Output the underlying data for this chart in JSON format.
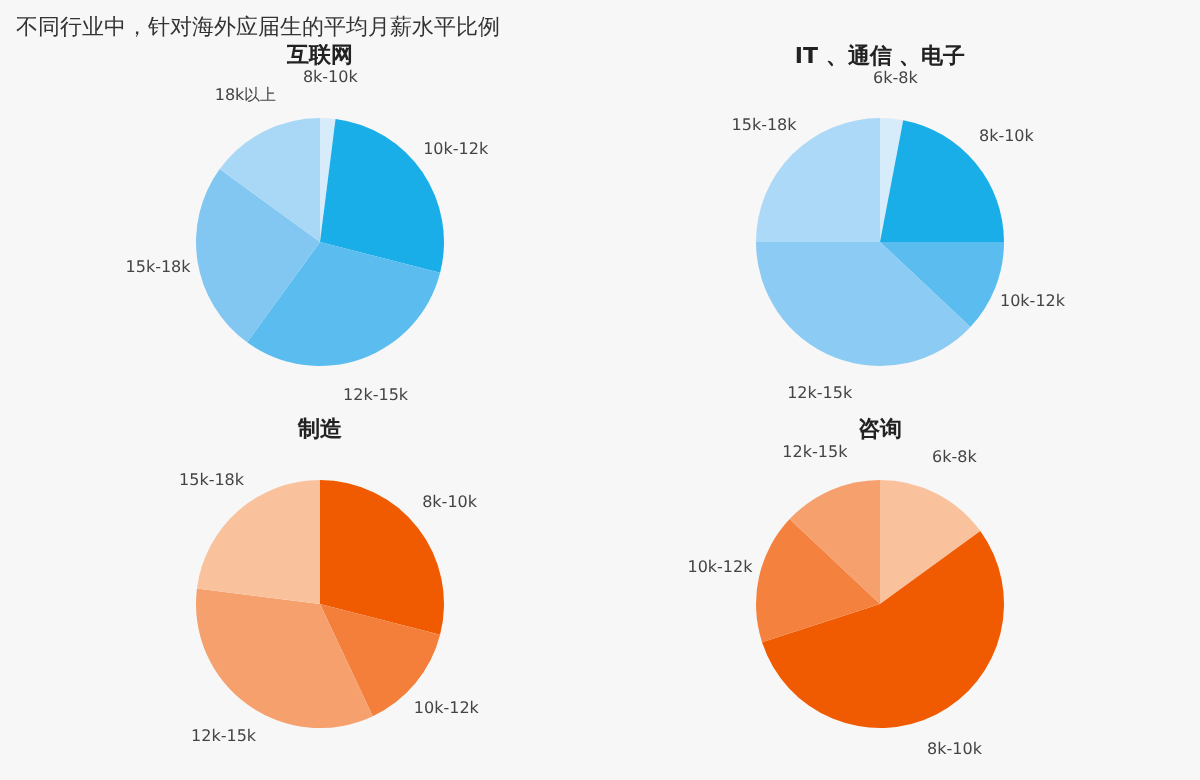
{
  "chart_data": [
    {
      "type": "pie",
      "title": "互联网",
      "annotations": [
        "不同行业中，针对海外应届生的平均月薪水平比例"
      ],
      "categories": [
        "8k-10k",
        "10k-12k",
        "12k-15k",
        "15k-18k",
        "18k以上"
      ],
      "values": [
        2,
        27,
        31,
        25,
        15
      ],
      "colors": [
        "#d6ecfa",
        "#1aaee8",
        "#5bbcef",
        "#82c6f2",
        "#a9d8f7"
      ]
    },
    {
      "type": "pie",
      "title": "IT 、通信 、电子",
      "categories": [
        "6k-8k",
        "8k-10k",
        "10k-12k",
        "12k-15k",
        "15k-18k"
      ],
      "values": [
        3,
        22,
        12,
        38,
        25
      ],
      "colors": [
        "#d6ecfa",
        "#1aaee8",
        "#5bbcef",
        "#8ccbf3",
        "#acd9f7"
      ]
    },
    {
      "type": "pie",
      "title": "制造",
      "categories": [
        "8k-10k",
        "10k-12k",
        "12k-15k",
        "15k-18k"
      ],
      "values": [
        29,
        14,
        34,
        23
      ],
      "colors": [
        "#f05a00",
        "#f47f3a",
        "#f6a06d",
        "#f9c29d"
      ]
    },
    {
      "type": "pie",
      "title": "咨询",
      "categories": [
        "6k-8k",
        "8k-10k",
        "10k-12k",
        "12k-15k"
      ],
      "values": [
        15,
        55,
        17,
        13
      ],
      "colors": [
        "#f9c29d",
        "#f05a00",
        "#f4813d",
        "#f6a06d"
      ]
    }
  ]
}
